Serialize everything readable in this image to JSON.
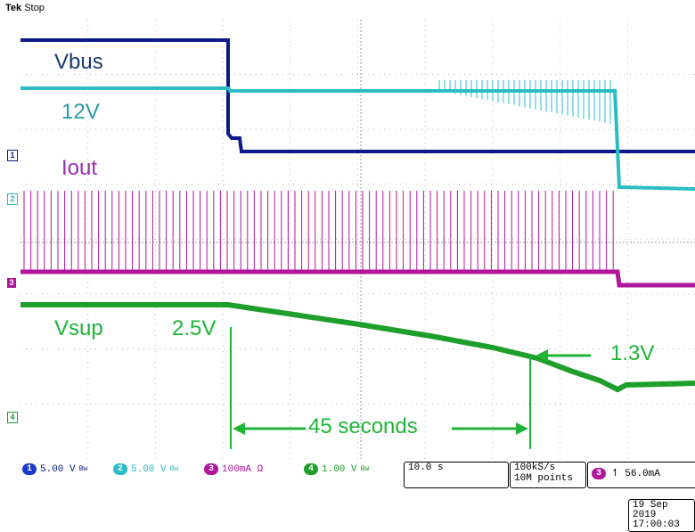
{
  "header": {
    "brand": "Tek",
    "state": "Stop"
  },
  "labels": {
    "vbus": "Vbus",
    "v12": "12V",
    "iout": "Iout",
    "vsup": "Vsup",
    "v25": "2.5V",
    "v13": "1.3V",
    "duration": "45 seconds"
  },
  "channel_markers": [
    "1",
    "2",
    "3",
    "4"
  ],
  "status": {
    "ch1": {
      "num": "1",
      "scale": "5.00 V",
      "bw": "Bw"
    },
    "ch2": {
      "num": "2",
      "scale": "5.00 V",
      "bw": "Bw"
    },
    "ch3": {
      "num": "3",
      "scale": "100mA Ω"
    },
    "ch4": {
      "num": "4",
      "scale": "1.00 V",
      "bw": "Bw"
    },
    "timebase": "10.0 s",
    "sample_rate": "100kS/s",
    "record_length": "10M points",
    "trigger": {
      "source": "3",
      "slope": "↿",
      "level": "56.0mA"
    }
  },
  "date": {
    "day": "19 Sep 2019",
    "time": "17:00:03"
  },
  "colors": {
    "ch1": "#0a1a8a",
    "ch2": "#2bbcc4",
    "ch3": "#b0169a",
    "ch4": "#1e9e2a",
    "annot_green": "#1fb437",
    "annot_blue": "#1a3a6e",
    "annot_cyan": "#2a9aa8",
    "annot_purple": "#9a2fb0"
  }
}
